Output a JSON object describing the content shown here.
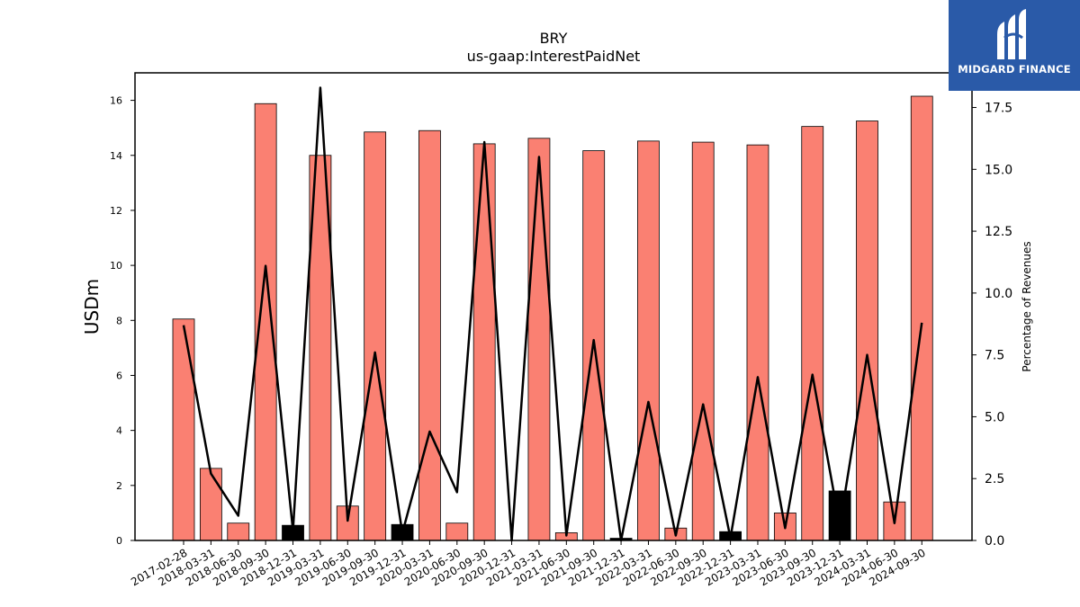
{
  "brand": {
    "name": "MIDGARD FINANCE",
    "bg_color": "#2a5aa8"
  },
  "colors": {
    "bar_positive": "#fa8072",
    "bar_negative": "#000000",
    "line": "#000000"
  },
  "chart_data": {
    "type": "bar",
    "title": "BRY",
    "subtitle": "us-gaap:InterestPaidNet",
    "ylabel": "USDm",
    "y2label": "Percentage of Revenues",
    "ylim": [
      0,
      17
    ],
    "y2lim": [
      0,
      18.9
    ],
    "yticks": [
      "0",
      "2",
      "4",
      "6",
      "8",
      "10",
      "12",
      "14",
      "16"
    ],
    "y2ticks": [
      "0.0",
      "2.5",
      "5.0",
      "7.5",
      "10.0",
      "12.5",
      "15.0",
      "17.5"
    ],
    "categories": [
      "2017-02-28",
      "2018-03-31",
      "2018-06-30",
      "2018-09-30",
      "2018-12-31",
      "2019-03-31",
      "2019-06-30",
      "2019-09-30",
      "2019-12-31",
      "2020-03-31",
      "2020-06-30",
      "2020-09-30",
      "2020-12-31",
      "2021-03-31",
      "2021-06-30",
      "2021-09-30",
      "2021-12-31",
      "2022-03-31",
      "2022-06-30",
      "2022-09-30",
      "2022-12-31",
      "2023-03-31",
      "2023-06-30",
      "2023-09-30",
      "2023-12-31",
      "2024-03-31",
      "2024-06-30",
      "2024-09-30"
    ],
    "series": [
      {
        "type": "bar",
        "values": [
          8.05,
          2.62,
          0.63,
          15.88,
          0.55,
          14.0,
          1.25,
          14.85,
          0.58,
          14.9,
          0.63,
          14.42,
          0.0,
          14.62,
          0.28,
          14.17,
          0.08,
          14.52,
          0.45,
          14.48,
          0.32,
          14.38,
          1.0,
          15.05,
          1.8,
          15.25,
          1.4,
          16.15
        ],
        "negative": [
          false,
          false,
          false,
          false,
          true,
          false,
          false,
          false,
          true,
          false,
          false,
          false,
          false,
          false,
          false,
          false,
          true,
          false,
          false,
          false,
          true,
          false,
          false,
          false,
          true,
          false,
          false,
          false
        ]
      },
      {
        "type": "line",
        "axis": "right",
        "values": [
          8.7,
          2.7,
          1.0,
          11.1,
          0.4,
          18.3,
          0.8,
          7.6,
          0.3,
          4.4,
          1.95,
          16.1,
          0.0,
          15.5,
          0.2,
          8.1,
          0.0,
          5.6,
          0.2,
          5.5,
          0.1,
          6.6,
          0.5,
          6.7,
          0.6,
          7.5,
          0.7,
          8.8
        ]
      }
    ],
    "grid": false,
    "legend": "none"
  }
}
